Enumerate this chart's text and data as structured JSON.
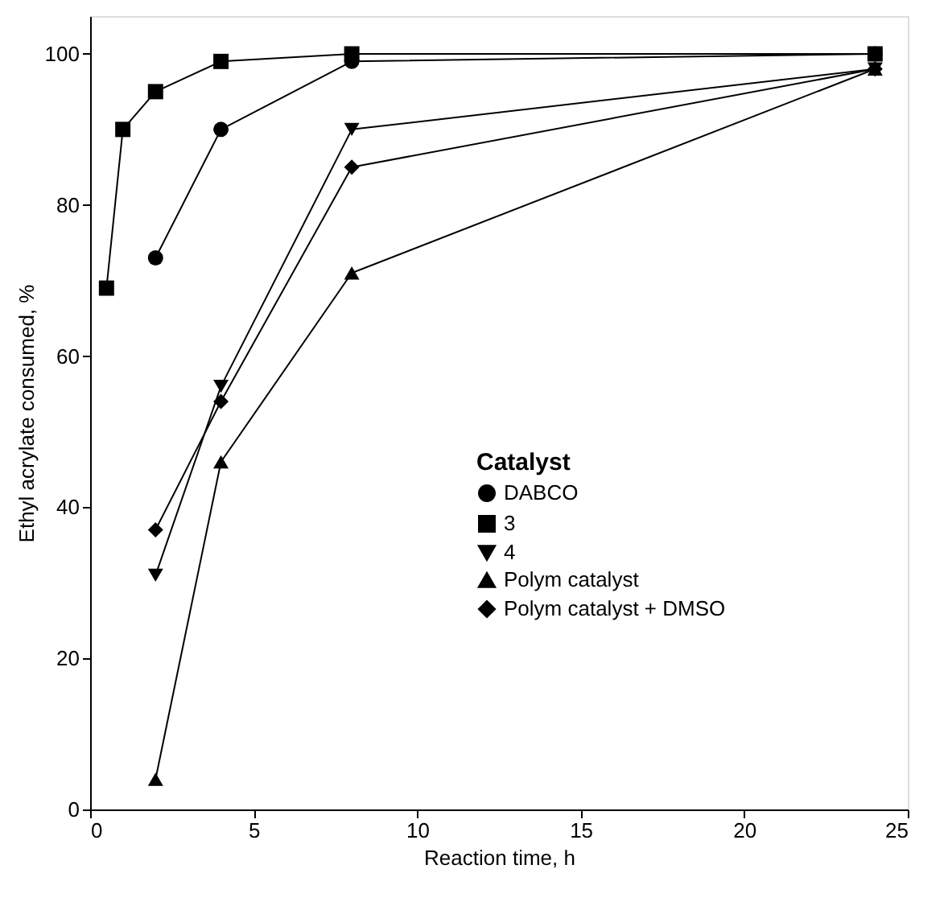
{
  "chart_data": {
    "type": "line",
    "xlabel": "Reaction time, h",
    "ylabel": "Ethyl acrylate consumed, %",
    "legend_title": "Catalyst",
    "legend": "right",
    "grid": false,
    "xlim": [
      0,
      25
    ],
    "xticks": [
      0,
      5,
      10,
      15,
      20,
      25
    ],
    "ylim": [
      0,
      105
    ],
    "yticks": [
      0,
      20,
      40,
      60,
      80,
      100
    ],
    "series": [
      {
        "name": "DABCO",
        "color": "#000000",
        "marker": "circle",
        "x": [
          2,
          4,
          8,
          24
        ],
        "values": [
          73,
          90,
          99,
          100
        ]
      },
      {
        "name": "3",
        "color": "#000000",
        "marker": "square",
        "x": [
          0.5,
          1,
          2,
          4,
          8,
          24
        ],
        "values": [
          69,
          90,
          95,
          99,
          100,
          100
        ]
      },
      {
        "name": "4",
        "color": "#000000",
        "marker": "triangle-down",
        "x": [
          2,
          4,
          8,
          24
        ],
        "values": [
          31,
          56,
          90,
          98
        ]
      },
      {
        "name": "Polym catalyst",
        "color": "#000000",
        "marker": "triangle",
        "x": [
          2,
          4,
          8,
          24
        ],
        "values": [
          4,
          46,
          71,
          98
        ]
      },
      {
        "name": "Polym catalyst + DMSO",
        "color": "#000000",
        "marker": "diamond",
        "x": [
          2,
          4,
          8,
          24
        ],
        "values": [
          37,
          54,
          85,
          98
        ]
      }
    ]
  }
}
